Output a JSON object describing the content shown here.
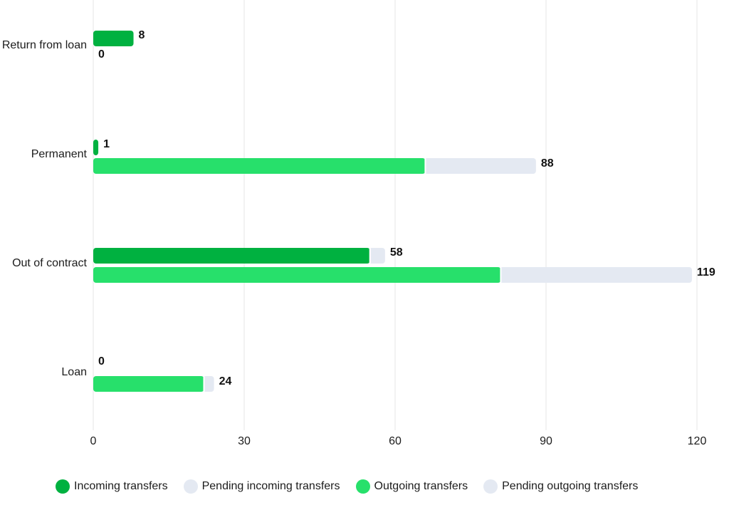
{
  "chart_data": {
    "type": "bar",
    "orientation": "horizontal",
    "stacked": true,
    "categories": [
      "Return from loan",
      "Permanent",
      "Out of contract",
      "Loan"
    ],
    "xlim": [
      0,
      120
    ],
    "xticks": [
      0,
      30,
      60,
      90,
      120
    ],
    "grid": true,
    "legend_position": "bottom",
    "legend": [
      {
        "name": "Incoming transfers",
        "color": "#00b140"
      },
      {
        "name": "Pending incoming transfers",
        "color": "#e4e9f2"
      },
      {
        "name": "Outgoing transfers",
        "color": "#27e06b"
      },
      {
        "name": "Pending outgoing transfers",
        "color": "#e4e9f2"
      }
    ],
    "incoming": {
      "completed": [
        8,
        1,
        55,
        0
      ],
      "pending": [
        0,
        0,
        3,
        0
      ],
      "totals": [
        "8",
        "1",
        "58",
        "0"
      ]
    },
    "outgoing": {
      "completed": [
        0,
        66,
        81,
        22
      ],
      "pending": [
        0,
        22,
        38,
        2
      ],
      "totals": [
        "0",
        "88",
        "119",
        "24"
      ]
    }
  }
}
